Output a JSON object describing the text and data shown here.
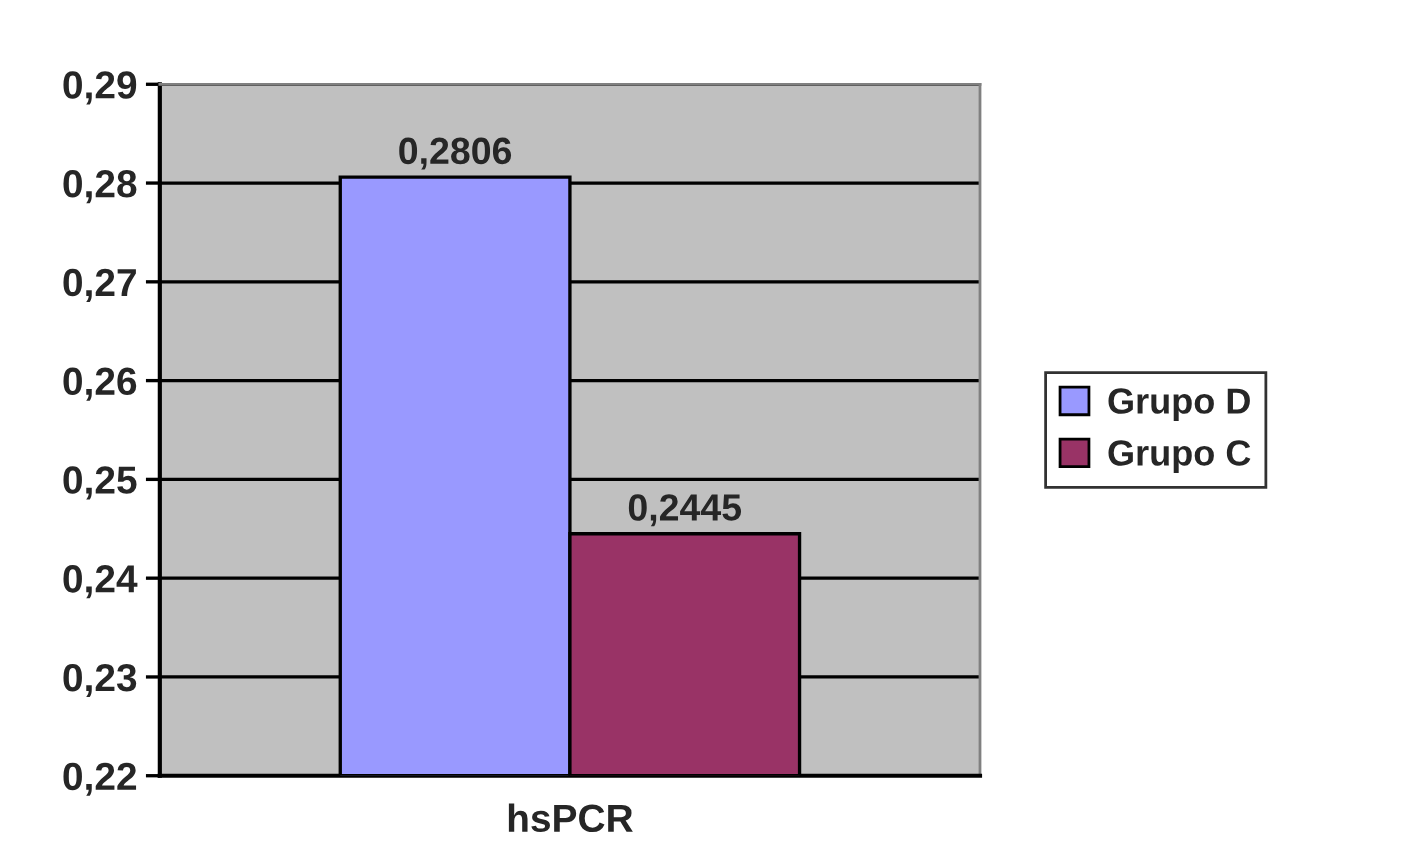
{
  "chart_data": {
    "type": "bar",
    "categories": [
      "hsPCR"
    ],
    "series": [
      {
        "name": "Grupo D",
        "color": "#9999ff",
        "values": [
          0.2806
        ],
        "value_labels": [
          "0,2806"
        ]
      },
      {
        "name": "Grupo C",
        "color": "#993366",
        "values": [
          0.2445
        ],
        "value_labels": [
          "0,2445"
        ]
      }
    ],
    "ylim": [
      0.22,
      0.29
    ],
    "yticks": [
      {
        "value": 0.22,
        "label": "0,22"
      },
      {
        "value": 0.23,
        "label": "0,23"
      },
      {
        "value": 0.24,
        "label": "0,24"
      },
      {
        "value": 0.25,
        "label": "0,25"
      },
      {
        "value": 0.26,
        "label": "0,26"
      },
      {
        "value": 0.27,
        "label": "0,27"
      },
      {
        "value": 0.28,
        "label": "0,28"
      },
      {
        "value": 0.29,
        "label": "0,29"
      }
    ],
    "grid": "y",
    "legend": "right"
  }
}
